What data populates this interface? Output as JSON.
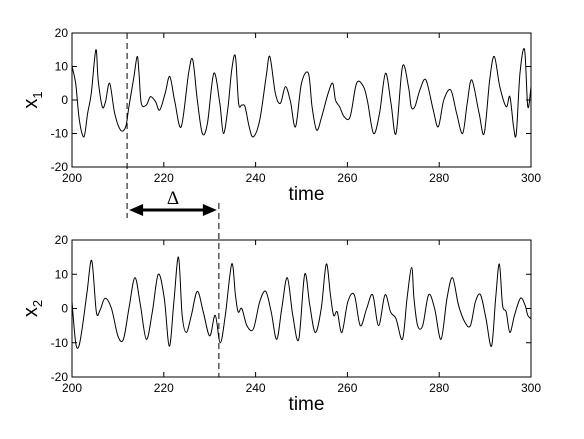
{
  "chart_data": [
    {
      "type": "line",
      "xlabel": "time",
      "ylabel": "x",
      "ylabel_sub": "1",
      "xlim": [
        200,
        300
      ],
      "ylim": [
        -20,
        20
      ],
      "xticks": [
        200,
        220,
        240,
        260,
        280,
        300
      ],
      "yticks": [
        -20,
        -10,
        0,
        10,
        20
      ],
      "grid": false,
      "series": [
        {
          "x": [
            200,
            200.8,
            201.6,
            202.6,
            203.4,
            204.2,
            205.2,
            205.7,
            206.6,
            207.3,
            208.2,
            209.3,
            210.6,
            211.7,
            212.4,
            213.5,
            214.2,
            214.6,
            215.1,
            216.2,
            217.1,
            218.2,
            219.1,
            220.3,
            221.3,
            222.4,
            223.8,
            225.4,
            226.3,
            227.3,
            228.4,
            229.5,
            230.9,
            232.2,
            233.0,
            234.0,
            234.8,
            235.6,
            236.3,
            237.0,
            237.7,
            238.6,
            239.5,
            240.9,
            242.3,
            243.1,
            244.3,
            245.4,
            246.5,
            247.6,
            248.7,
            250.0,
            251.5,
            252.3,
            253.3,
            254.4,
            255.8,
            256.8,
            257.4,
            258.3,
            259.3,
            260.6,
            262.0,
            263.5,
            264.4,
            265.7,
            267.0,
            268.3,
            269.5,
            270.6,
            272.0,
            273.3,
            273.9,
            274.7,
            275.8,
            277.1,
            278.7,
            279.8,
            281.0,
            282.5,
            283.8,
            285.1,
            286.1,
            287.1,
            288.7,
            289.8,
            291.0,
            292.0,
            293.2,
            294.6,
            295.4,
            296.2,
            296.8,
            297.6,
            298.6,
            299.3,
            300
          ],
          "y": [
            10,
            5,
            -6,
            -11,
            -4,
            2,
            15,
            6,
            -2,
            -0.5,
            5,
            -4,
            -9,
            -8,
            -2,
            7,
            13,
            8,
            -1,
            -1.5,
            1,
            -0.5,
            -3,
            2,
            7,
            -0.5,
            -8,
            8,
            12,
            0,
            -10,
            -7,
            8,
            -1,
            -10,
            -2,
            9,
            13,
            -1,
            -1.5,
            -2,
            -8,
            -11,
            -6,
            7,
            13,
            2,
            -1,
            4,
            -0.5,
            -8,
            5,
            8,
            -2,
            -9,
            -5,
            2,
            5,
            0,
            -2,
            -5,
            -5,
            5,
            4,
            -0.5,
            -10,
            -4,
            8,
            -1,
            -10,
            10,
            4,
            -2,
            -2,
            3,
            6,
            -3,
            -8,
            0,
            3,
            -4,
            -10,
            -1,
            6,
            -4,
            -10,
            6,
            13,
            4,
            -2,
            1,
            -8,
            -10,
            8,
            15,
            -2,
            4
          ]
        }
      ]
    },
    {
      "type": "line",
      "xlabel": "time",
      "ylabel": "x",
      "ylabel_sub": "2",
      "xlim": [
        200,
        300
      ],
      "ylim": [
        -20,
        20
      ],
      "xticks": [
        200,
        220,
        240,
        260,
        280,
        300
      ],
      "yticks": [
        -20,
        -10,
        0,
        10,
        20
      ],
      "grid": false,
      "series": [
        {
          "x": [
            200,
            200.8,
            201.5,
            202.3,
            203.3,
            204.3,
            205.3,
            206.1,
            207.2,
            208.6,
            210.0,
            211.2,
            212.4,
            213.7,
            214.9,
            216.2,
            217.5,
            218.8,
            220.1,
            221.2,
            222.2,
            223.2,
            224.0,
            224.9,
            226.0,
            227.3,
            228.6,
            230.0,
            231.2,
            232.3,
            233.4,
            234.8,
            235.6,
            236.2,
            237.0,
            238.1,
            239.5,
            240.9,
            242.2,
            243.4,
            244.6,
            245.7,
            246.9,
            248.1,
            249.4,
            250.7,
            251.8,
            253.0,
            254.3,
            255.4,
            256.3,
            257.0,
            257.8,
            258.8,
            260.1,
            261.5,
            262.8,
            264.2,
            265.5,
            266.8,
            268.2,
            269.4,
            270.6,
            272.0,
            273.0,
            274.0,
            274.5,
            275.3,
            276.4,
            277.7,
            279.0,
            280.4,
            281.7,
            282.9,
            284.2,
            285.6,
            286.8,
            287.9,
            289.0,
            290.2,
            291.4,
            292.3,
            293.1,
            293.8,
            294.6,
            295.4,
            296.4,
            297.7,
            298.7,
            299.3,
            300
          ],
          "y": [
            2,
            -10,
            -11,
            -5,
            5,
            14,
            -1,
            -0.5,
            3,
            0,
            -8,
            -9,
            0,
            9,
            1,
            -9,
            -1,
            10,
            3,
            -11,
            2,
            15,
            -2,
            -7,
            -2,
            5,
            -1,
            -8,
            -2,
            -10,
            -2,
            13,
            4,
            -1,
            0,
            -5,
            -6,
            2,
            5,
            -1,
            -9,
            0,
            9,
            -2,
            -9,
            10,
            1,
            -7,
            0,
            13,
            4,
            -2,
            -1,
            -7,
            2,
            4,
            -5,
            0,
            4,
            -5,
            4,
            -1,
            -3,
            -9,
            3,
            12,
            3,
            -5,
            -5,
            4,
            0,
            -9,
            3,
            9,
            1,
            -4,
            -5,
            2,
            4,
            -3,
            -11,
            3,
            13,
            1,
            -1,
            -7,
            -2,
            3,
            1,
            -2,
            -3
          ]
        }
      ]
    }
  ],
  "annotation": {
    "label": "Δ",
    "x_start": 212,
    "x_end": 232
  }
}
